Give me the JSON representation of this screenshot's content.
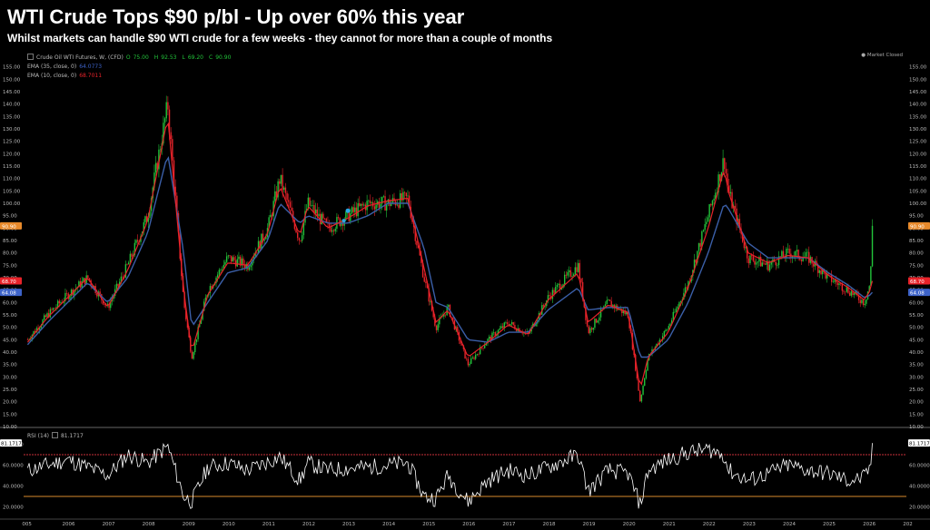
{
  "title": "WTI Crude Tops $90 p/bl - Up over 60% this year",
  "subtitle": "Whilst markets can handle $90 WTI crude for a few weeks - they cannot for more than a couple of months",
  "colors": {
    "background": "#000000",
    "candle_up": "#22c43a",
    "candle_down": "#e8232a",
    "ema35": "#3b5fa8",
    "ema10": "#e8232a",
    "rsi": "#ffffff",
    "rsi_upper": "#c7303a",
    "rsi_lower": "#d98a2b",
    "price_tag_current": "#e88a2b",
    "price_tag_ema35": "#3d63c9",
    "price_tag_ema10": "#e8232a",
    "arrow_markers": "#2aa7e6"
  },
  "legend": {
    "symbol": "Crude Oil WTI Futures, W, (CFD)",
    "ohlc": {
      "o": "75.00",
      "h": "92.53",
      "l": "69.20",
      "c": "90.90"
    },
    "ohlc_labels": [
      "O",
      "H",
      "L",
      "C"
    ],
    "ema35_label": "EMA (35, close, 0)",
    "ema35_value": "64.0773",
    "ema10_label": "EMA (10, close, 0)",
    "ema10_value": "68.7011",
    "market_status": "Market Closed"
  },
  "rsi_panel": {
    "label": "RSI (14)",
    "value": "81.1717",
    "levels": [
      70,
      30
    ],
    "ticks": [
      "80.0000",
      "60.0000",
      "40.0000",
      "20.0000"
    ]
  },
  "price_tags": {
    "current": "90.90",
    "ema10": "68.70",
    "ema35": "64.08"
  },
  "chart_data": {
    "type": "line",
    "ylim": [
      10,
      160
    ],
    "y_ticks": [
      "10.00",
      "15.00",
      "20.00",
      "25.00",
      "30.00",
      "35.00",
      "40.00",
      "45.00",
      "50.00",
      "55.00",
      "60.00",
      "65.00",
      "70.00",
      "75.00",
      "80.00",
      "85.00",
      "90.00",
      "95.00",
      "100.00",
      "105.00",
      "110.00",
      "115.00",
      "120.00",
      "125.00",
      "130.00",
      "135.00",
      "140.00",
      "145.00",
      "150.00",
      "155.00"
    ],
    "x_labels": [
      "005",
      "2006",
      "2007",
      "2008",
      "2009",
      "2010",
      "2011",
      "2012",
      "2013",
      "2014",
      "2015",
      "2016",
      "2017",
      "2018",
      "2019",
      "2020",
      "2021",
      "2022",
      "2023",
      "2024",
      "2025",
      "2026",
      "202"
    ],
    "x": [
      2005.0,
      2005.5,
      2006.0,
      2006.5,
      2007.0,
      2007.5,
      2008.0,
      2008.5,
      2008.9,
      2009.1,
      2009.5,
      2010.0,
      2010.5,
      2011.0,
      2011.3,
      2011.8,
      2012.0,
      2012.5,
      2013.0,
      2013.5,
      2014.0,
      2014.5,
      2014.9,
      2015.2,
      2015.5,
      2016.0,
      2016.5,
      2017.0,
      2017.5,
      2018.0,
      2018.75,
      2019.0,
      2019.5,
      2020.0,
      2020.3,
      2020.5,
      2021.0,
      2021.5,
      2022.0,
      2022.4,
      2022.5,
      2023.0,
      2023.5,
      2024.0,
      2024.5,
      2025.0,
      2025.5,
      2025.9,
      2026.05,
      2026.1
    ],
    "series": [
      {
        "values": [
          45,
          55,
          63,
          70,
          58,
          75,
          95,
          140,
          60,
          38,
          65,
          78,
          75,
          90,
          110,
          85,
          100,
          90,
          95,
          100,
          100,
          102,
          70,
          50,
          58,
          35,
          45,
          52,
          47,
          62,
          75,
          48,
          60,
          55,
          20,
          38,
          50,
          68,
          95,
          118,
          105,
          78,
          75,
          80,
          78,
          70,
          65,
          60,
          68,
          90.9
        ]
      },
      {
        "values": [
          43,
          52,
          60,
          68,
          60,
          70,
          88,
          120,
          80,
          50,
          60,
          72,
          74,
          85,
          100,
          92,
          95,
          92,
          92,
          95,
          100,
          100,
          82,
          60,
          58,
          45,
          44,
          48,
          48,
          57,
          66,
          57,
          58,
          58,
          38,
          38,
          45,
          60,
          80,
          100,
          98,
          84,
          78,
          78,
          78,
          72,
          67,
          62,
          63,
          64.08
        ]
      },
      {
        "values": [
          44,
          54,
          62,
          70,
          58,
          73,
          93,
          135,
          65,
          40,
          63,
          76,
          75,
          88,
          107,
          87,
          99,
          90,
          94,
          99,
          101,
          102,
          74,
          52,
          57,
          38,
          44,
          51,
          47,
          61,
          72,
          52,
          59,
          56,
          25,
          38,
          48,
          66,
          90,
          114,
          105,
          80,
          76,
          79,
          78,
          71,
          66,
          61,
          65,
          68.7
        ]
      },
      {
        "values": [
          55,
          60,
          65,
          58,
          50,
          70,
          62,
          78,
          30,
          25,
          58,
          62,
          55,
          63,
          68,
          45,
          62,
          55,
          57,
          58,
          60,
          62,
          30,
          28,
          50,
          25,
          45,
          55,
          50,
          58,
          70,
          35,
          55,
          52,
          22,
          55,
          65,
          72,
          75,
          70,
          55,
          45,
          52,
          60,
          55,
          52,
          45,
          48,
          58,
          81.17
        ]
      }
    ]
  }
}
